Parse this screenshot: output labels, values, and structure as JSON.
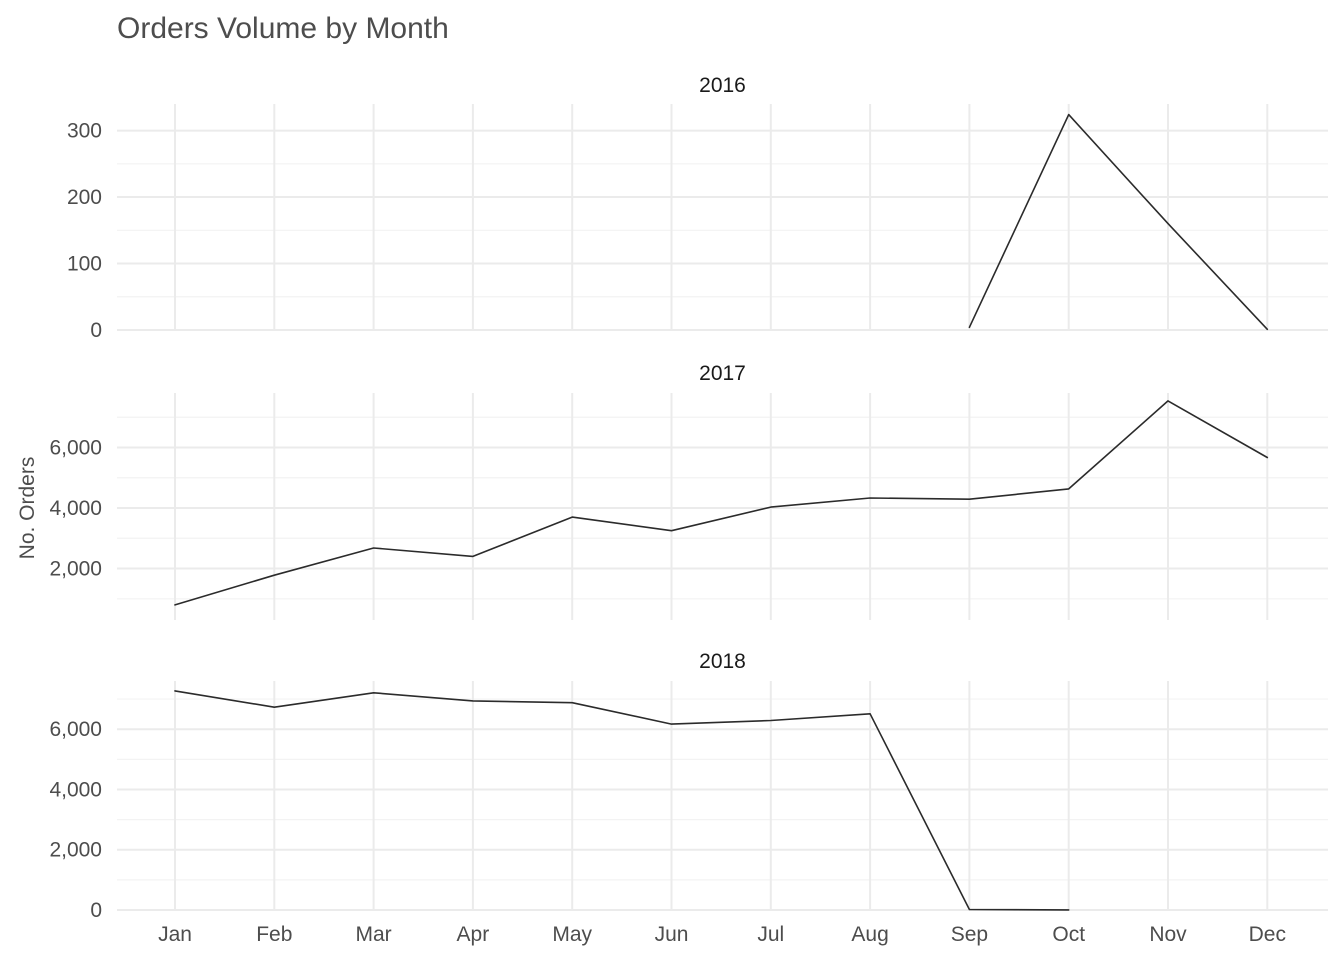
{
  "chart_data": {
    "type": "line",
    "title": "Orders Volume by Month",
    "xlabel": "",
    "ylabel": "No. Orders",
    "categories": [
      "Jan",
      "Feb",
      "Mar",
      "Apr",
      "May",
      "Jun",
      "Jul",
      "Aug",
      "Sep",
      "Oct",
      "Nov",
      "Dec"
    ],
    "grid": true,
    "legend": "none",
    "line_color": "#2b2b2b",
    "panels": [
      {
        "facet": "2016",
        "ylim": [
          0,
          340
        ],
        "yticks": [
          0,
          100,
          200,
          300
        ],
        "ytick_labels": [
          "0",
          "100",
          "200",
          "300"
        ],
        "values": [
          null,
          null,
          null,
          null,
          null,
          null,
          null,
          null,
          4,
          324,
          160,
          1
        ]
      },
      {
        "facet": "2017",
        "ylim": [
          300,
          7800
        ],
        "yticks": [
          2000,
          4000,
          6000
        ],
        "ytick_labels": [
          "2,000",
          "4,000",
          "6,000"
        ],
        "values": [
          800,
          1780,
          2680,
          2400,
          3700,
          3250,
          4030,
          4330,
          4290,
          4630,
          7540,
          5670
        ]
      },
      {
        "facet": "2018",
        "ylim": [
          0,
          7600
        ],
        "yticks": [
          0,
          2000,
          4000,
          6000
        ],
        "ytick_labels": [
          "0",
          "2,000",
          "4,000",
          "6,000"
        ],
        "values": [
          7270,
          6730,
          7210,
          6940,
          6880,
          6170,
          6290,
          6510,
          16,
          4,
          null,
          null
        ]
      }
    ]
  }
}
